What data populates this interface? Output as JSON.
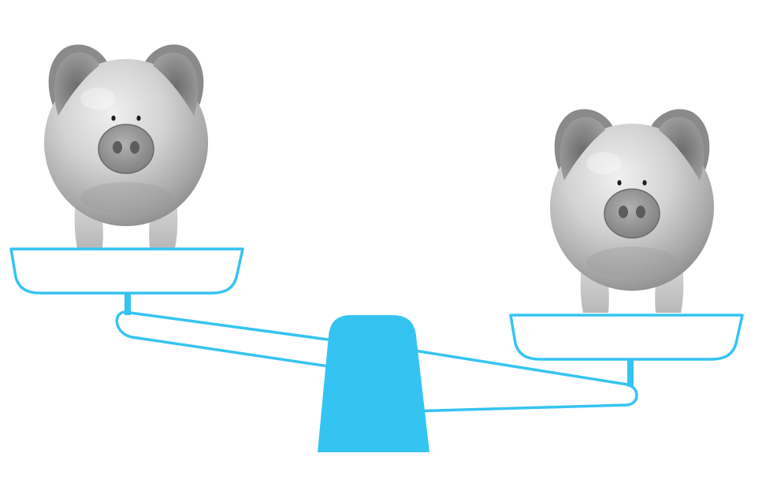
{
  "illustration": {
    "subject": "balance-scale-with-two-piggy-banks",
    "colors": {
      "background": "#ffffff",
      "scale": "#35c4f2",
      "pig_light": "#e2e2e2",
      "pig_mid": "#b4b4b4",
      "pig_dark": "#7d7d7d",
      "pig_darker": "#5c5c5c"
    },
    "icons": {
      "left_object": "piggy-bank-icon",
      "right_object": "piggy-bank-icon",
      "scale": "balance-scale-icon"
    },
    "tilt": "left-side-up"
  }
}
